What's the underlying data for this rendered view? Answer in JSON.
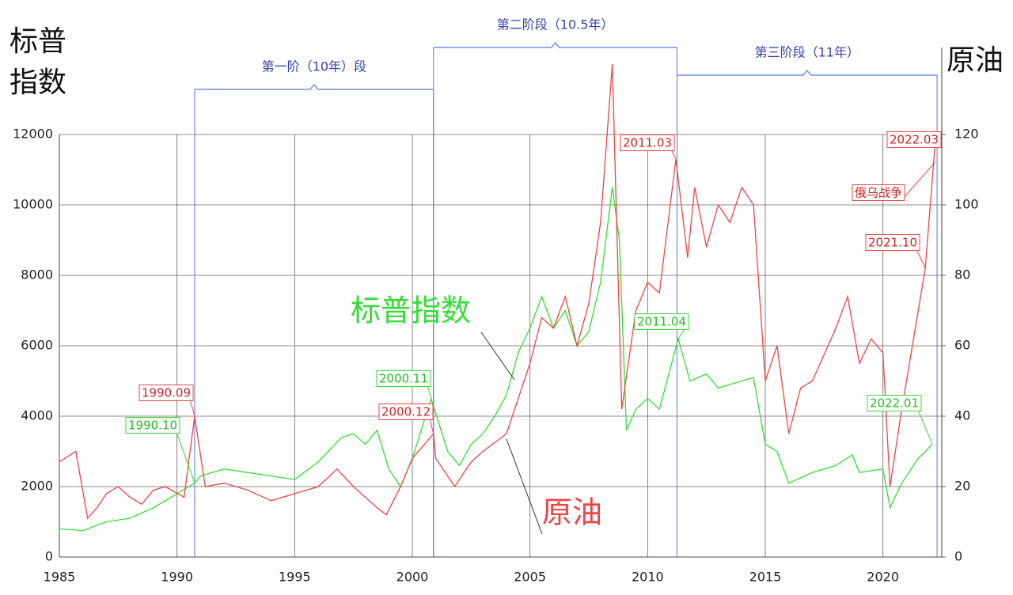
{
  "chart_data": {
    "type": "line",
    "y_label": [
      "标普",
      "指数"
    ],
    "y2_label": "原油",
    "xlim": [
      1985,
      2022.5
    ],
    "xticks": [
      1985,
      1990,
      1995,
      2000,
      2005,
      2010,
      2015,
      2020
    ],
    "ylim": [
      0,
      12000
    ],
    "yticks": [
      0,
      2000,
      4000,
      6000,
      8000,
      10000,
      12000
    ],
    "y2lim": [
      0,
      120
    ],
    "y2ticks": [
      0,
      20,
      40,
      60,
      80,
      100,
      120
    ],
    "grid": true,
    "series": [
      {
        "name": "标普指数",
        "color": "#33dd33",
        "x": [
          1985,
          1986,
          1987,
          1988,
          1989,
          1990,
          1990.75,
          1991,
          1992,
          1993,
          1994,
          1995,
          1996,
          1997,
          1997.5,
          1998,
          1998.5,
          1999,
          1999.5,
          2000,
          2000.8,
          2001.5,
          2002,
          2002.5,
          2003,
          2003.5,
          2004,
          2004.5,
          2005,
          2005.5,
          2006,
          2006.5,
          2007,
          2007.5,
          2008,
          2008.5,
          2008.8,
          2009.1,
          2009.5,
          2010,
          2010.5,
          2011.3,
          2011.8,
          2012.5,
          2013,
          2014,
          2014.5,
          2015,
          2015.5,
          2016,
          2017,
          2018,
          2018.7,
          2019,
          2020,
          2020.3,
          2020.8,
          2021.5,
          2022.1
        ],
        "values": [
          800,
          750,
          1000,
          1100,
          1400,
          1800,
          2100,
          2300,
          2500,
          2400,
          2300,
          2200,
          2700,
          3400,
          3500,
          3200,
          3600,
          2500,
          2000,
          2800,
          4500,
          3000,
          2600,
          3200,
          3500,
          4000,
          4600,
          5800,
          6500,
          7400,
          6500,
          7000,
          6000,
          6400,
          7800,
          10500,
          9000,
          3600,
          4200,
          4500,
          4200,
          6200,
          5000,
          5200,
          4800,
          5000,
          5100,
          3200,
          3000,
          2100,
          2400,
          2600,
          2900,
          2400,
          2500,
          1400,
          2100,
          2800,
          3200
        ]
      },
      {
        "name": "原油",
        "color": "#ee4444",
        "axis": "y2",
        "x": [
          1985,
          1985.7,
          1986.2,
          1986.6,
          1987,
          1987.5,
          1988,
          1988.5,
          1989,
          1989.5,
          1990.3,
          1990.75,
          1991.2,
          1992,
          1993,
          1994,
          1995,
          1996,
          1996.8,
          1997.5,
          1998.5,
          1998.9,
          1999.5,
          2000,
          2000.9,
          2001,
          2001.8,
          2002.5,
          2003,
          2004,
          2004.5,
          2005,
          2005.5,
          2006,
          2006.5,
          2007,
          2007.5,
          2008,
          2008.5,
          2008.9,
          2009.5,
          2010,
          2010.5,
          2011.2,
          2011.7,
          2012,
          2012.5,
          2013,
          2013.5,
          2014,
          2014.5,
          2015,
          2015.5,
          2016,
          2016.5,
          2017,
          2018,
          2018.5,
          2019,
          2019.5,
          2020,
          2020.3,
          2020.8,
          2021.3,
          2021.8,
          2022.2
        ],
        "values": [
          27,
          30,
          11,
          14,
          18,
          20,
          17,
          15,
          19,
          20,
          17,
          40,
          20,
          21,
          19,
          16,
          18,
          20,
          25,
          20,
          14,
          12,
          20,
          28,
          35,
          28,
          20,
          27,
          30,
          35,
          45,
          55,
          68,
          65,
          74,
          60,
          72,
          95,
          140,
          42,
          70,
          78,
          75,
          113,
          85,
          105,
          88,
          100,
          95,
          105,
          100,
          50,
          60,
          35,
          48,
          50,
          65,
          74,
          55,
          62,
          58,
          20,
          42,
          62,
          82,
          116
        ]
      }
    ],
    "phases": [
      {
        "label": "第一阶（10年）段",
        "start": 1990.75,
        "end": 2000.9
      },
      {
        "label": "第二阶段（10.5年）",
        "start": 2000.9,
        "end": 2011.25
      },
      {
        "label": "第三阶段（11年）",
        "start": 2011.25,
        "end": 2022.3
      }
    ],
    "point_labels": [
      {
        "text": "1990.09",
        "series": 1,
        "x": 1990.75,
        "y": 40
      },
      {
        "text": "1990.10",
        "series": 0,
        "x": 1990.75,
        "y": 2100
      },
      {
        "text": "2000.11",
        "series": 0,
        "x": 2000.8,
        "y": 4500
      },
      {
        "text": "2000.12",
        "series": 1,
        "x": 2000.9,
        "y": 35
      },
      {
        "text": "2011.03",
        "series": 1,
        "x": 2011.2,
        "y": 113
      },
      {
        "text": "2011.04",
        "series": 0,
        "x": 2011.3,
        "y": 6200
      },
      {
        "text": "2021.10",
        "series": 1,
        "x": 2021.8,
        "y": 82
      },
      {
        "text": "2022.01",
        "series": 0,
        "x": 2022.1,
        "y": 3200
      },
      {
        "text": "2022.03",
        "series": 1,
        "x": 2022.2,
        "y": 116
      },
      {
        "text": "俄乌战争",
        "series": 1,
        "x": 2022.2,
        "y": 112
      }
    ]
  }
}
